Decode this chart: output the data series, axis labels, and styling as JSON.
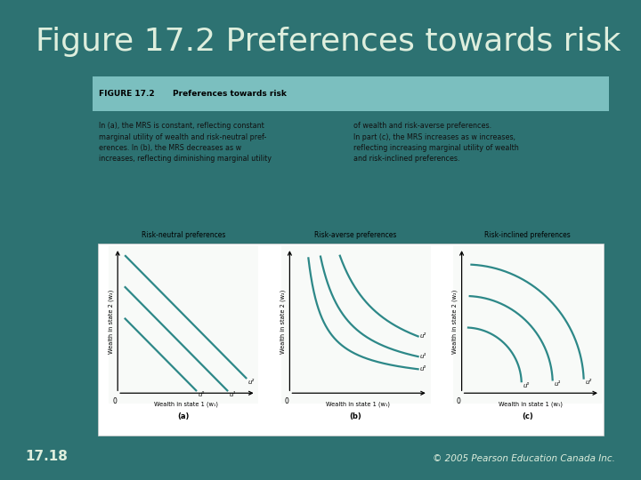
{
  "title": "Figure 17.2 Preferences towards risk",
  "title_fontsize": 26,
  "title_color": "#deeedd",
  "bg_color": "#2d7272",
  "card_bg": "#e8f4f0",
  "card_border": "#ffffff",
  "card_header_bg": "#7bbfbf",
  "card_header_text_left": "FIGURE 17.2",
  "card_header_text_right": "Preferences towards risk",
  "card_body_left": "In (a), the MRS is constant, reflecting constant\nmarginal utility of wealth and risk-neutral pref-\nerences. In (b), the MRS decreases as w\nincreases, reflecting diminishing marginal utility",
  "card_body_right": "of wealth and risk-averse preferences.\nIn part (c), the MRS increases as w increases,\nreflecting increasing marginal utility of wealth\nand risk-inclined preferences.",
  "panel_titles": [
    "Risk-neutral preferences",
    "Risk-averse preferences",
    "Risk-inclined preferences"
  ],
  "panel_labels": [
    "(a)",
    "(b)",
    "(c)"
  ],
  "xlabel": "Wealth in state 1 (w₁)",
  "ylabel": "Wealth in state 2 (w₂)",
  "curve_color": "#2d8888",
  "curve_lw": 1.6,
  "panel_bg": "#f8faf8",
  "page_num": "17.18",
  "copyright": "© 2005 Pearson Education Canada Inc.",
  "footer_color": "#deeedd"
}
